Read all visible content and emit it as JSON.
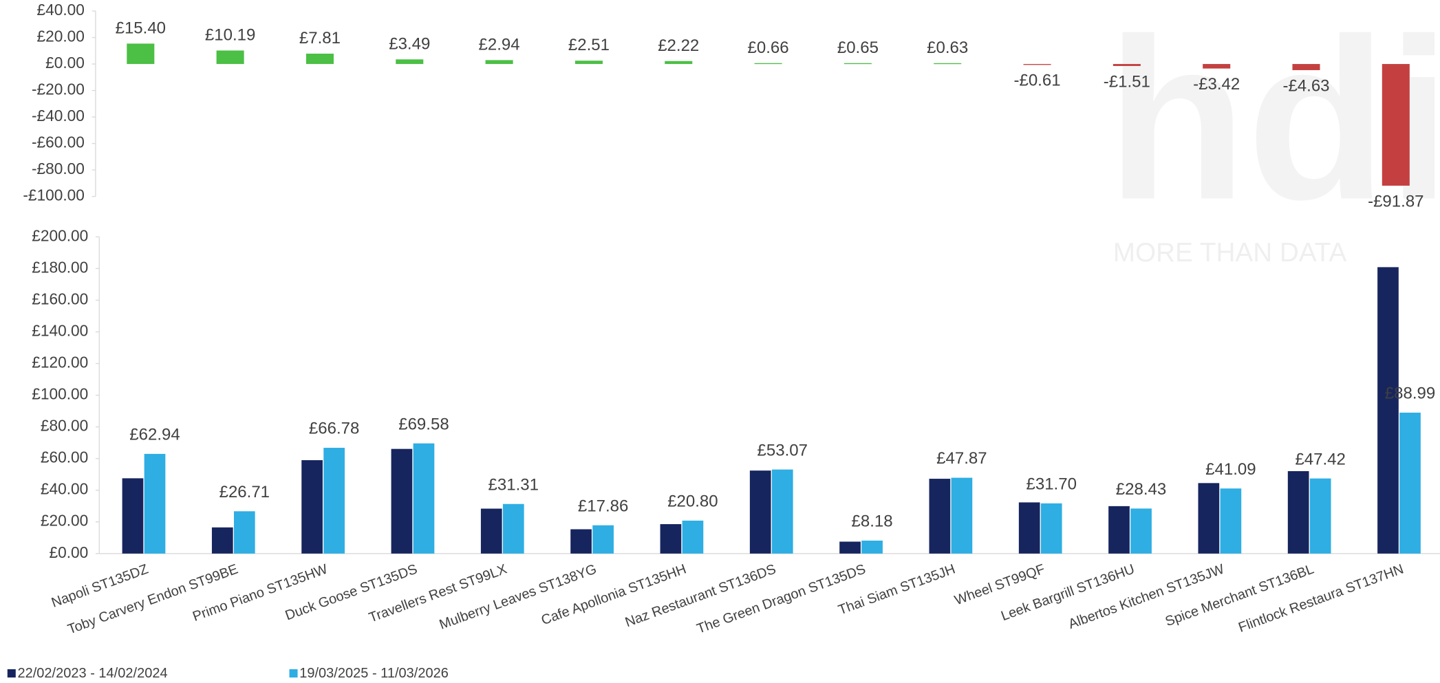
{
  "watermark": {
    "logo": "hdi",
    "tagline": "MORE THAN DATA"
  },
  "chart_data": [
    {
      "type": "bar",
      "categories": [
        "Napoli ST135DZ",
        "Toby Carvery Endon ST99BE",
        "Primo Piano ST135HW",
        "Duck Goose ST135DS",
        "Travellers Rest ST99LX",
        "Mulberry Leaves ST138YG",
        "Cafe Apollonia ST135HH",
        "Naz Restaurant ST136DS",
        "The Green Dragon ST135DS",
        "Thai Siam ST135JH",
        "Wheel ST99QF",
        "Leek Bargrill ST136HU",
        "Albertos Kitchen ST135JW",
        "Spice Merchant ST136BL",
        "Flintlock Restaura ST137HN"
      ],
      "values": [
        15.4,
        10.19,
        7.81,
        3.49,
        2.94,
        2.51,
        2.22,
        0.66,
        0.65,
        0.63,
        -0.61,
        -1.51,
        -3.42,
        -4.63,
        -91.87
      ],
      "value_labels": [
        "£15.40",
        "£10.19",
        "£7.81",
        "£3.49",
        "£2.94",
        "£2.51",
        "£2.22",
        "£0.66",
        "£0.65",
        "£0.63",
        "-£0.61",
        "-£1.51",
        "-£3.42",
        "-£4.63",
        "-£91.87"
      ],
      "positive_color": "#4cbf45",
      "negative_color": "#c44040",
      "ylim": [
        -100,
        40
      ],
      "yticks": [
        {
          "value": 40,
          "label": "£40.00"
        },
        {
          "value": 20,
          "label": "£20.00"
        },
        {
          "value": 0,
          "label": "£0.00"
        },
        {
          "value": -20,
          "label": "-£20.00"
        },
        {
          "value": -40,
          "label": "-£40.00"
        },
        {
          "value": -60,
          "label": "-£60.00"
        },
        {
          "value": -80,
          "label": "-£80.00"
        },
        {
          "value": -100,
          "label": "-£100.00"
        }
      ]
    },
    {
      "type": "grouped_bar",
      "categories": [
        "Napoli ST135DZ",
        "Toby Carvery Endon ST99BE",
        "Primo Piano ST135HW",
        "Duck Goose ST135DS",
        "Travellers Rest ST99LX",
        "Mulberry Leaves ST138YG",
        "Cafe Apollonia ST135HH",
        "Naz Restaurant ST136DS",
        "The Green Dragon ST135DS",
        "Thai Siam ST135JH",
        "Wheel ST99QF",
        "Leek Bargrill ST136HU",
        "Albertos Kitchen ST135JW",
        "Spice Merchant ST136BL",
        "Flintlock Restaura ST137HN"
      ],
      "series": [
        {
          "name": "22/02/2023 - 14/02/2024",
          "color": "#17255e",
          "values": [
            47.54,
            16.52,
            58.97,
            66.09,
            28.37,
            15.35,
            18.58,
            52.41,
            7.53,
            47.24,
            32.31,
            29.94,
            44.51,
            52.05,
            180.86
          ]
        },
        {
          "name": "19/03/2025 - 11/03/2026",
          "color": "#2eaee3",
          "values": [
            62.94,
            26.71,
            66.78,
            69.58,
            31.31,
            17.86,
            20.8,
            53.07,
            8.18,
            47.87,
            31.7,
            28.43,
            41.09,
            47.42,
            88.99
          ],
          "value_labels": [
            "£62.94",
            "£26.71",
            "£66.78",
            "£69.58",
            "£31.31",
            "£17.86",
            "£20.80",
            "£53.07",
            "£8.18",
            "£47.87",
            "£31.70",
            "£28.43",
            "£41.09",
            "£47.42",
            "£88.99"
          ]
        }
      ],
      "ylim": [
        0,
        200
      ],
      "yticks": [
        {
          "value": 200,
          "label": "£200.00"
        },
        {
          "value": 180,
          "label": "£180.00"
        },
        {
          "value": 160,
          "label": "£160.00"
        },
        {
          "value": 140,
          "label": "£140.00"
        },
        {
          "value": 120,
          "label": "£120.00"
        },
        {
          "value": 100,
          "label": "£100.00"
        },
        {
          "value": 80,
          "label": "£80.00"
        },
        {
          "value": 60,
          "label": "£60.00"
        },
        {
          "value": 40,
          "label": "£40.00"
        },
        {
          "value": 20,
          "label": "£20.00"
        },
        {
          "value": 0,
          "label": "£0.00"
        }
      ],
      "legend": "bottom-left"
    }
  ]
}
